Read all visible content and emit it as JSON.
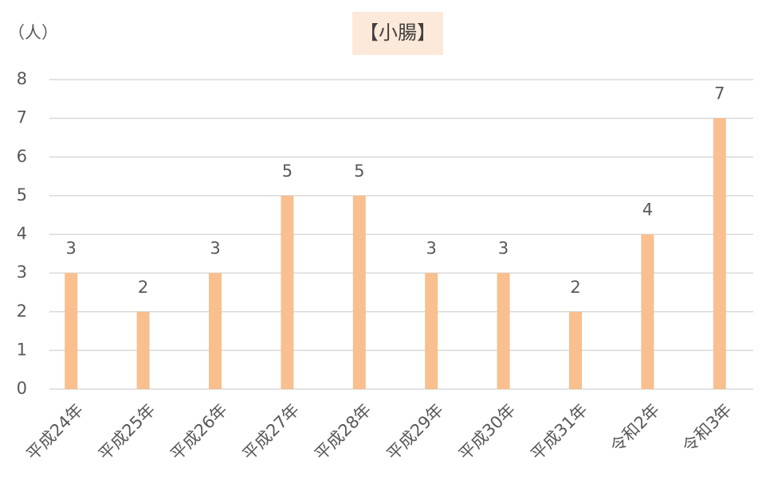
{
  "chart_data": {
    "type": "bar",
    "title": "【小腸】",
    "y_label": "（人）",
    "categories": [
      "平成24年",
      "平成25年",
      "平成26年",
      "平成27年",
      "平成28年",
      "平成29年",
      "平成30年",
      "平成31年",
      "令和2年",
      "令和3年"
    ],
    "values": [
      3,
      2,
      3,
      5,
      5,
      3,
      3,
      2,
      4,
      7
    ],
    "color": "#f9bf8f",
    "ylim": [
      0,
      8
    ],
    "yticks": [
      0,
      1,
      2,
      3,
      4,
      5,
      6,
      7,
      8
    ],
    "grid": true
  }
}
